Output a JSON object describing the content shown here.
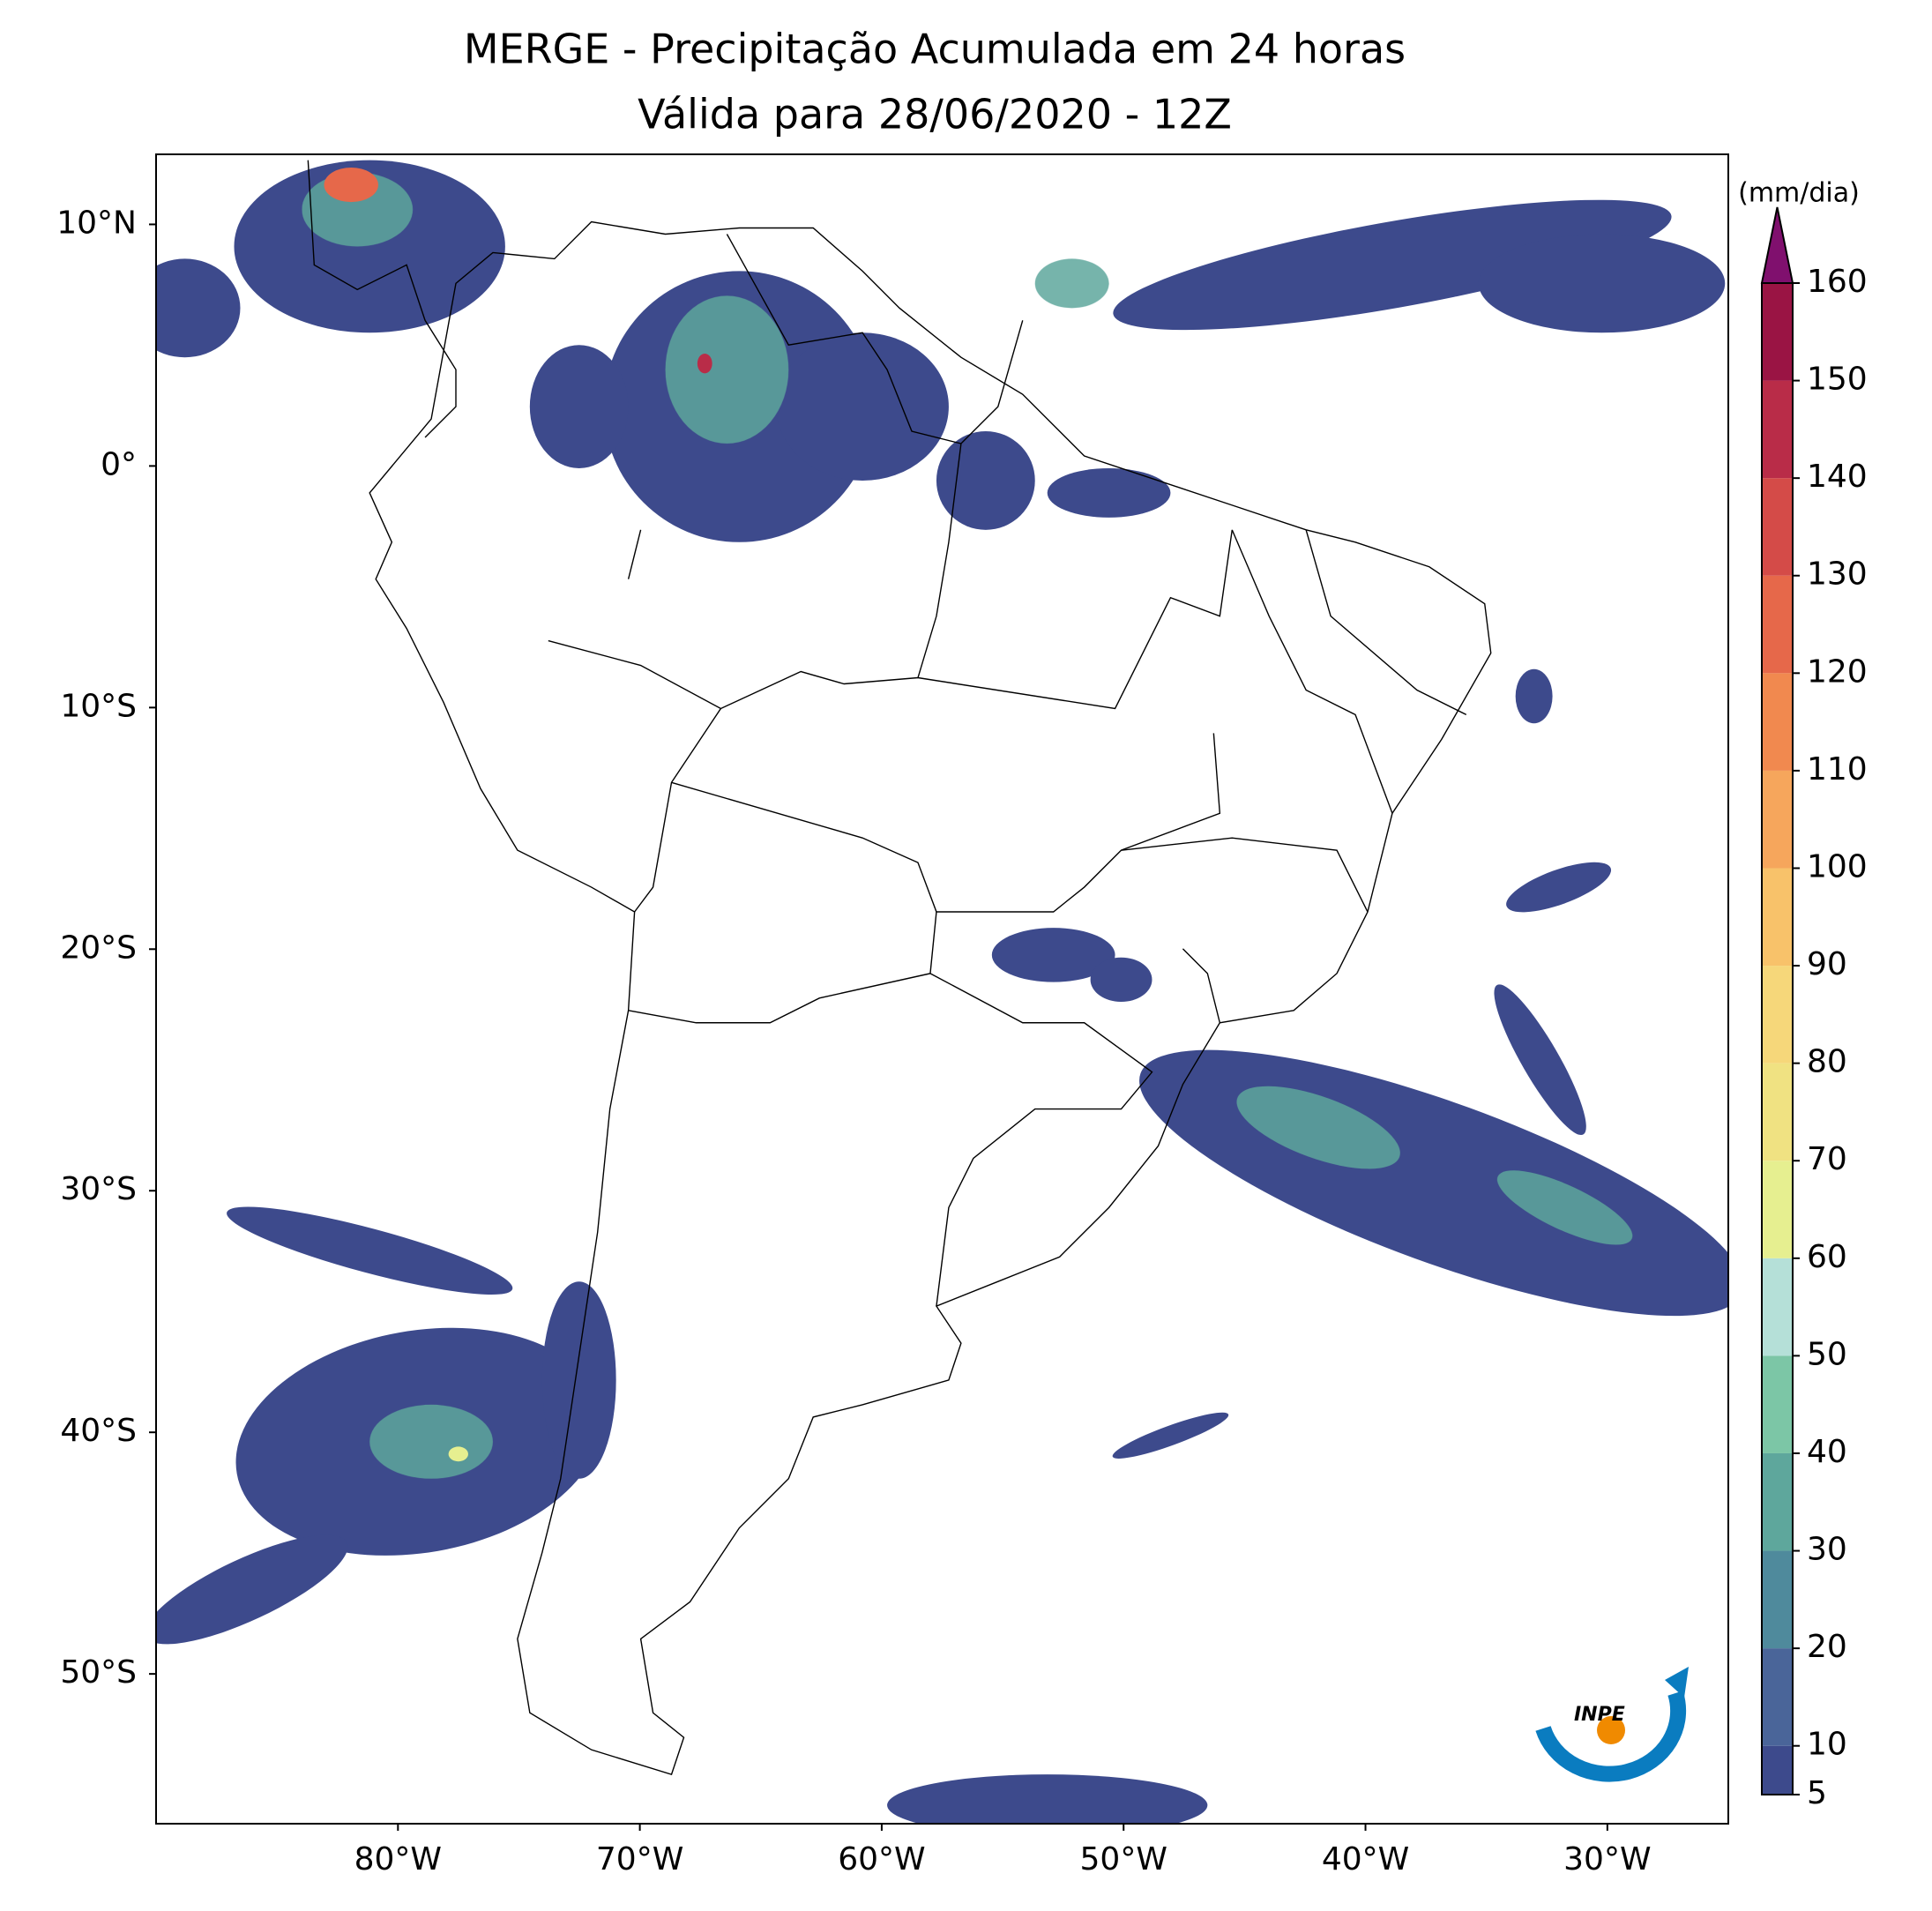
{
  "title": [
    "MERGE - Precipitação Acumulada em 24 horas",
    "Válida para 28/06/2020 - 12Z"
  ],
  "map": {
    "xlim": [
      -90,
      -25
    ],
    "ylim": [
      -56.2,
      12.9
    ],
    "lon_ticks": [
      {
        "value": -80,
        "label": "80°W"
      },
      {
        "value": -70,
        "label": "70°W"
      },
      {
        "value": -60,
        "label": "60°W"
      },
      {
        "value": -50,
        "label": "50°W"
      },
      {
        "value": -40,
        "label": "40°W"
      },
      {
        "value": -30,
        "label": "30°W"
      }
    ],
    "lat_ticks": [
      {
        "value": 10,
        "label": "10°N"
      },
      {
        "value": 0,
        "label": "0°"
      },
      {
        "value": -10,
        "label": "10°S"
      },
      {
        "value": -20,
        "label": "20°S"
      },
      {
        "value": -30,
        "label": "30°S"
      },
      {
        "value": -40,
        "label": "40°S"
      },
      {
        "value": -50,
        "label": "50°S"
      }
    ],
    "colorbar": {
      "unit": "(mm/dia)",
      "range": [
        5,
        160
      ],
      "ticks": [
        5,
        10,
        20,
        30,
        40,
        50,
        60,
        70,
        80,
        90,
        100,
        110,
        120,
        130,
        140,
        150,
        160
      ],
      "colors": [
        "#3d4a8c",
        "#4a6599",
        "#4f8a9c",
        "#5ea79c",
        "#7cc6a6",
        "#b5e0d8",
        "#e6ef90",
        "#f0e282",
        "#f6d77a",
        "#f8c26a",
        "#f6a65c",
        "#f1894f",
        "#e6684a",
        "#d44b48",
        "#b92c48",
        "#9a1444"
      ],
      "extend_color": "#80106e"
    }
  },
  "logo": "INPE"
}
